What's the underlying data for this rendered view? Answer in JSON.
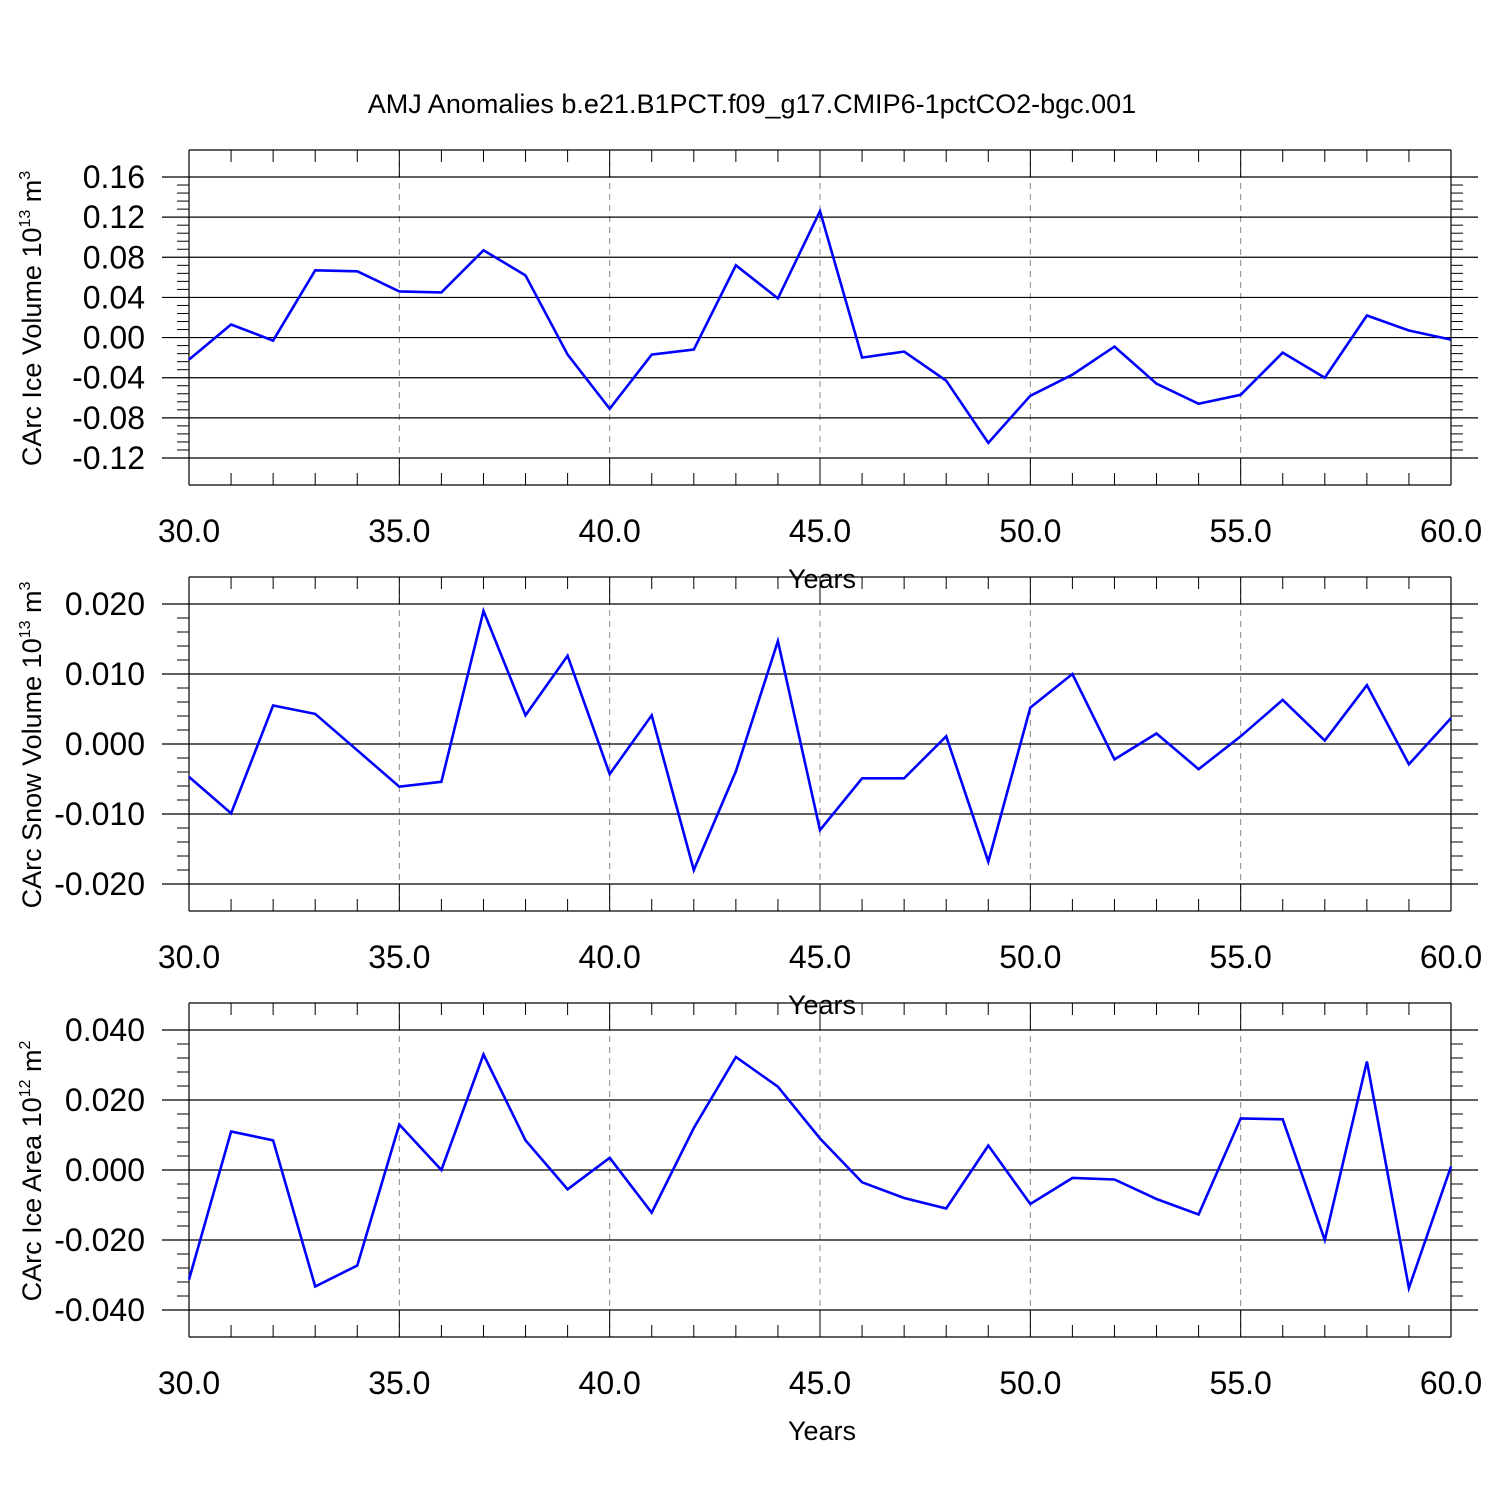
{
  "figure": {
    "title": "AMJ Anomalies b.e21.B1PCT.f09_g17.CMIP6-1pctCO2-bgc.001"
  },
  "chart_data": [
    {
      "type": "line",
      "ylabel": {
        "base": "CArc Ice Volume 10",
        "exp": "13",
        "unit": " m",
        "unit_exp": "3"
      },
      "xlabel": "Years",
      "xlim": [
        30,
        60
      ],
      "ylim": [
        -0.12,
        0.16
      ],
      "grid": "vertical dashed at major x ticks",
      "x_ticks": [
        30,
        35,
        40,
        45,
        50,
        55,
        60
      ],
      "x_tick_labels": [
        "30.0",
        "35.0",
        "40.0",
        "45.0",
        "50.0",
        "55.0",
        "60.0"
      ],
      "y_ticks": [
        -0.12,
        -0.08,
        -0.04,
        0.0,
        0.04,
        0.08,
        0.12,
        0.16
      ],
      "y_tick_labels": [
        "-0.12",
        "-0.08",
        "-0.04",
        "0.00",
        "0.04",
        "0.08",
        "0.12",
        "0.16"
      ],
      "y_minor_step": 0.008,
      "series": [
        {
          "color": "#0000ff",
          "x": [
            30,
            31,
            32,
            33,
            34,
            35,
            36,
            37,
            38,
            39,
            40,
            41,
            42,
            43,
            44,
            45,
            46,
            47,
            48,
            49,
            50,
            51,
            52,
            53,
            54,
            55,
            56,
            57,
            58,
            59,
            60
          ],
          "y": [
            -0.022,
            0.013,
            -0.003,
            0.067,
            0.066,
            0.046,
            0.045,
            0.087,
            0.062,
            -0.017,
            -0.071,
            -0.017,
            -0.012,
            0.072,
            0.039,
            0.126,
            -0.02,
            -0.014,
            -0.043,
            -0.105,
            -0.058,
            -0.037,
            -0.009,
            -0.046,
            -0.066,
            -0.057,
            -0.015,
            -0.04,
            0.022,
            0.007,
            -0.002
          ]
        }
      ]
    },
    {
      "type": "line",
      "ylabel": {
        "base": "CArc Snow Volume 10",
        "exp": "13",
        "unit": " m",
        "unit_exp": "3"
      },
      "xlabel": "Years",
      "xlim": [
        30,
        60
      ],
      "ylim": [
        -0.02,
        0.02
      ],
      "grid": "vertical dashed at major x ticks",
      "x_ticks": [
        30,
        35,
        40,
        45,
        50,
        55,
        60
      ],
      "x_tick_labels": [
        "30.0",
        "35.0",
        "40.0",
        "45.0",
        "50.0",
        "55.0",
        "60.0"
      ],
      "y_ticks": [
        -0.02,
        -0.01,
        0.0,
        0.01,
        0.02
      ],
      "y_tick_labels": [
        "-0.020",
        "-0.010",
        "0.000",
        "0.010",
        "0.020"
      ],
      "y_minor_step": 0.002,
      "series": [
        {
          "color": "#0000ff",
          "x": [
            30,
            31,
            32,
            33,
            34,
            35,
            36,
            37,
            38,
            39,
            40,
            41,
            42,
            43,
            44,
            45,
            46,
            47,
            48,
            49,
            50,
            51,
            52,
            53,
            54,
            55,
            56,
            57,
            58,
            59,
            60
          ],
          "y": [
            -0.0047,
            -0.0099,
            0.0055,
            0.0043,
            -0.0009,
            -0.0061,
            -0.0054,
            0.019,
            0.0041,
            0.0126,
            -0.0043,
            0.0041,
            -0.018,
            -0.0039,
            0.0147,
            -0.0123,
            -0.0049,
            -0.0049,
            0.0011,
            -0.0168,
            0.0052,
            0.01,
            -0.0022,
            0.0015,
            -0.0036,
            0.0011,
            0.0063,
            0.0005,
            0.0084,
            -0.0029,
            0.0037
          ]
        }
      ]
    },
    {
      "type": "line",
      "ylabel": {
        "base": "CArc Ice Area 10",
        "exp": "12",
        "unit": " m",
        "unit_exp": "2"
      },
      "xlabel": "Years",
      "xlim": [
        30,
        60
      ],
      "ylim": [
        -0.04,
        0.04
      ],
      "grid": "vertical dashed at major x ticks",
      "x_ticks": [
        30,
        35,
        40,
        45,
        50,
        55,
        60
      ],
      "x_tick_labels": [
        "30.0",
        "35.0",
        "40.0",
        "45.0",
        "50.0",
        "55.0",
        "60.0"
      ],
      "y_ticks": [
        -0.04,
        -0.02,
        0.0,
        0.02,
        0.04
      ],
      "y_tick_labels": [
        "-0.040",
        "-0.020",
        "0.000",
        "0.020",
        "0.040"
      ],
      "y_minor_step": 0.004,
      "series": [
        {
          "color": "#0000ff",
          "x": [
            30,
            31,
            32,
            33,
            34,
            35,
            36,
            37,
            38,
            39,
            40,
            41,
            42,
            43,
            44,
            45,
            46,
            47,
            48,
            49,
            50,
            51,
            52,
            53,
            54,
            55,
            56,
            57,
            58,
            59,
            60
          ],
          "y": [
            -0.0313,
            0.011,
            0.0085,
            -0.0333,
            -0.0273,
            0.013,
            0.0,
            0.033,
            0.0085,
            -0.0055,
            0.0035,
            -0.0122,
            0.012,
            0.0323,
            0.0238,
            0.009,
            -0.0035,
            -0.008,
            -0.011,
            0.007,
            -0.0097,
            -0.0023,
            -0.0027,
            -0.0083,
            -0.0127,
            0.0147,
            0.0145,
            -0.02,
            0.031,
            -0.0337,
            0.001
          ]
        }
      ]
    }
  ]
}
